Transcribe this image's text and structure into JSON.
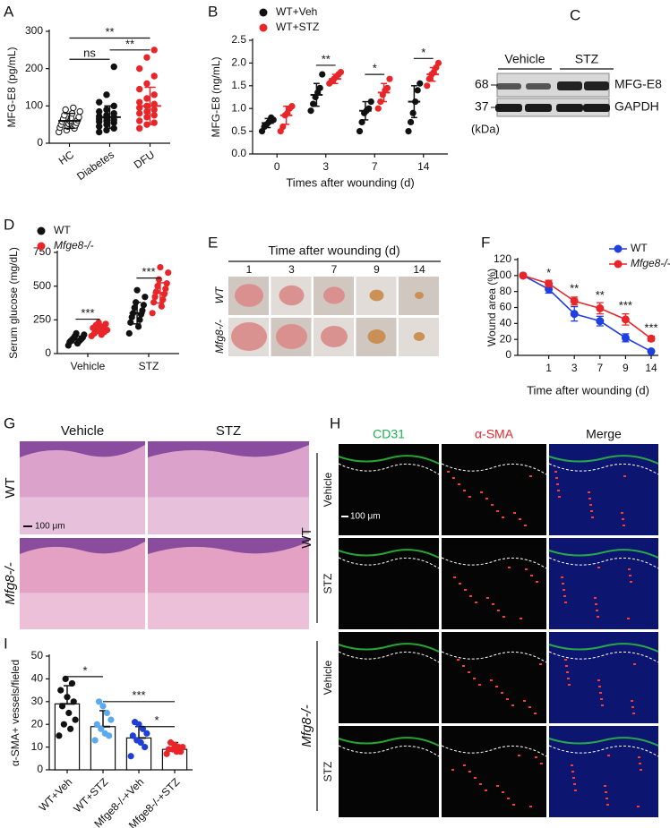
{
  "chart_data": [
    {
      "type": "dot",
      "label": "A",
      "ylabel": "MFG-E8 (pg/mL)",
      "categories": [
        "HC",
        "Diabetes",
        "DFU"
      ],
      "colors": [
        "#111111",
        "#111111",
        "#e8262a"
      ],
      "markers": [
        "open",
        "filled",
        "filled"
      ],
      "points": [
        [
          30,
          35,
          40,
          42,
          45,
          48,
          50,
          52,
          55,
          58,
          60,
          62,
          65,
          68,
          70,
          75,
          80,
          85,
          90,
          95
        ],
        [
          30,
          35,
          40,
          45,
          50,
          55,
          58,
          60,
          62,
          65,
          68,
          70,
          72,
          75,
          80,
          85,
          90,
          100,
          110,
          130,
          205
        ],
        [
          40,
          50,
          55,
          60,
          70,
          75,
          80,
          85,
          90,
          95,
          100,
          105,
          110,
          120,
          130,
          145,
          160,
          180,
          200,
          230,
          250
        ]
      ],
      "means": [
        60,
        70,
        100
      ],
      "sd": [
        20,
        30,
        50
      ],
      "ylim": [
        0,
        300
      ],
      "yticks": [
        0,
        100,
        200,
        300
      ],
      "annotations": [
        {
          "text": "ns",
          "between": [
            "HC",
            "Diabetes"
          ],
          "y": 225
        },
        {
          "text": "**",
          "between": [
            "Diabetes",
            "DFU"
          ],
          "y": 250
        },
        {
          "text": "**",
          "between": [
            "HC",
            "DFU"
          ],
          "y": 282
        }
      ]
    },
    {
      "type": "grouped-dot",
      "label": "B",
      "ylabel": "MFG-E8 (ng/mL)",
      "xlabel": "Times after wounding (d)",
      "categories": [
        "0",
        "3",
        "7",
        "14"
      ],
      "series": [
        {
          "name": "WT+Veh",
          "color": "#111111",
          "points": [
            [
              0.5,
              0.6,
              0.65,
              0.7,
              0.8,
              0.75
            ],
            [
              0.95,
              1.1,
              1.25,
              1.35,
              1.45,
              1.75
            ],
            [
              0.5,
              0.7,
              0.9,
              0.95,
              1.0,
              1.15
            ],
            [
              0.5,
              0.7,
              0.9,
              1.15,
              1.4,
              1.55
            ]
          ],
          "means": [
            0.68,
            1.3,
            0.95,
            1.15
          ],
          "sd": [
            0.1,
            0.25,
            0.2,
            0.35
          ]
        },
        {
          "name": "WT+STZ",
          "color": "#e8262a",
          "points": [
            [
              0.5,
              0.6,
              0.85,
              0.9,
              1.0,
              1.05
            ],
            [
              1.55,
              1.6,
              1.65,
              1.7,
              1.75,
              1.8
            ],
            [
              1.0,
              1.15,
              1.3,
              1.4,
              1.45,
              1.65
            ],
            [
              1.5,
              1.65,
              1.75,
              1.8,
              1.9,
              2.0
            ]
          ],
          "means": [
            0.85,
            1.65,
            1.35,
            1.75
          ],
          "sd": [
            0.2,
            0.1,
            0.2,
            0.15
          ]
        }
      ],
      "ylim": [
        0,
        2.5
      ],
      "yticks": [
        {
          "value": 0,
          "label": "0.0"
        },
        0.5,
        {
          "value": 1,
          "label": "1.0"
        },
        1.5,
        {
          "value": 2,
          "label": "2.0"
        },
        2.5
      ],
      "annotations": [
        {
          "text": "**",
          "at": "3",
          "y": 1.95
        },
        {
          "text": "*",
          "at": "7",
          "y": 1.75
        },
        {
          "text": "*",
          "at": "14",
          "y": 2.1
        }
      ]
    },
    {
      "type": "grouped-dot",
      "label": "D",
      "ylabel": "Serum glucose (mg/dL)",
      "categories": [
        "Vehicle",
        "STZ"
      ],
      "series": [
        {
          "name": "WT",
          "color": "#111111",
          "points": [
            [
              60,
              75,
              85,
              90,
              95,
              100,
              105,
              110,
              115,
              120,
              130,
              140,
              150
            ],
            [
              150,
              200,
              230,
              250,
              270,
              290,
              300,
              320,
              340,
              360,
              380,
              420,
              470
            ]
          ],
          "means": [
            105,
            300
          ],
          "sd": [
            25,
            80
          ]
        },
        {
          "name": "Mfge8-/-",
          "color": "#e8262a",
          "points": [
            [
              130,
              140,
              150,
              160,
              170,
              175,
              180,
              190,
              200,
              210,
              220,
              230
            ],
            [
              300,
              350,
              380,
              400,
              420,
              440,
              460,
              480,
              500,
              520,
              550,
              600,
              640
            ]
          ],
          "means": [
            180,
            450
          ],
          "sd": [
            30,
            75
          ]
        }
      ],
      "ylim": [
        0,
        750
      ],
      "yticks": [
        0,
        250,
        500,
        750
      ],
      "annotations": [
        {
          "text": "***",
          "at": "Vehicle",
          "y": 255
        },
        {
          "text": "***",
          "at": "STZ",
          "y": 560
        }
      ]
    },
    {
      "type": "line",
      "label": "F",
      "ylabel": "Wound area (%)",
      "xlabel": "Time after wounding (d)",
      "categories": [
        null,
        "1",
        "3",
        "7",
        "9",
        "14"
      ],
      "series": [
        {
          "name": "WT",
          "color": "#1f3fe0",
          "values": [
            100,
            83,
            52,
            43,
            22,
            5
          ],
          "err": [
            0,
            5,
            9,
            6,
            5,
            1
          ]
        },
        {
          "name": "Mfge8-/-",
          "color": "#e8262a",
          "values": [
            100,
            90,
            68,
            59,
            45,
            21
          ],
          "err": [
            0,
            4,
            5,
            7,
            7,
            3
          ]
        }
      ],
      "ylim": [
        0,
        120
      ],
      "yticks": [
        0,
        20,
        40,
        60,
        80,
        100,
        120
      ],
      "annotations": [
        {
          "text": "*",
          "at": "1",
          "y": 96
        },
        {
          "text": "**",
          "at": "3",
          "y": 76
        },
        {
          "text": "**",
          "at": "7",
          "y": 68
        },
        {
          "text": "***",
          "at": "9",
          "y": 55
        },
        {
          "text": "***",
          "at": "14",
          "y": 27
        }
      ]
    },
    {
      "type": "bar",
      "label": "I",
      "ylabel": "α-SMA+ vessels/fieled",
      "categories": [
        "WT+Veh",
        "WT+STZ",
        "Mfge8-/-+Veh",
        "Mfge8-/-+STZ"
      ],
      "colors": [
        "#111111",
        "#5aaaf0",
        "#1f3fd6",
        "#e8262a"
      ],
      "values": [
        29,
        19,
        14,
        9
      ],
      "err": [
        8,
        7,
        5,
        3
      ],
      "points": [
        [
          15,
          18,
          20,
          22,
          25,
          28,
          30,
          32,
          35,
          38,
          40
        ],
        [
          13,
          15,
          16,
          18,
          20,
          22,
          25,
          28,
          30
        ],
        [
          6,
          10,
          12,
          13,
          15,
          16,
          18,
          20,
          21
        ],
        [
          7,
          8,
          8,
          9,
          9,
          10,
          10,
          11,
          12
        ]
      ],
      "ylim": [
        0,
        50
      ],
      "yticks": [
        0,
        10,
        20,
        30,
        40,
        50
      ],
      "annotations": [
        {
          "text": "*",
          "between": [
            "WT+Veh",
            "WT+STZ"
          ],
          "y": 41
        },
        {
          "text": "***",
          "between": [
            "WT+STZ",
            "Mfge8-/-+STZ"
          ],
          "y": 30
        },
        {
          "text": "*",
          "between": [
            "Mfge8-/-+Veh",
            "Mfge8-/-+STZ"
          ],
          "y": 19
        }
      ]
    }
  ],
  "blot": {
    "label": "C",
    "groups": [
      "Vehicle",
      "STZ"
    ],
    "markers": [
      "68",
      "37"
    ],
    "proteins": [
      "MFG-E8",
      "GAPDH"
    ],
    "unit": "(kDa)"
  },
  "wound_photos": {
    "label": "E",
    "title": "Time after wounding (d)",
    "days": [
      "1",
      "3",
      "7",
      "9",
      "14"
    ],
    "rows": [
      "WT",
      "Mfg8-/-"
    ]
  },
  "histology": {
    "label": "G",
    "columns": [
      "Vehicle",
      "STZ"
    ],
    "rows": [
      "WT",
      "Mfg8-/-"
    ],
    "scale": "100 μm"
  },
  "immunofluorescence": {
    "label": "H",
    "columns": [
      "CD31",
      "α-SMA",
      "Merge"
    ],
    "genotypes": [
      "WT",
      "Mfg8-/-"
    ],
    "treatments": [
      [
        "Vehicle",
        "STZ"
      ],
      [
        "Vehicle",
        "STZ"
      ]
    ],
    "scale": "100 μm"
  }
}
